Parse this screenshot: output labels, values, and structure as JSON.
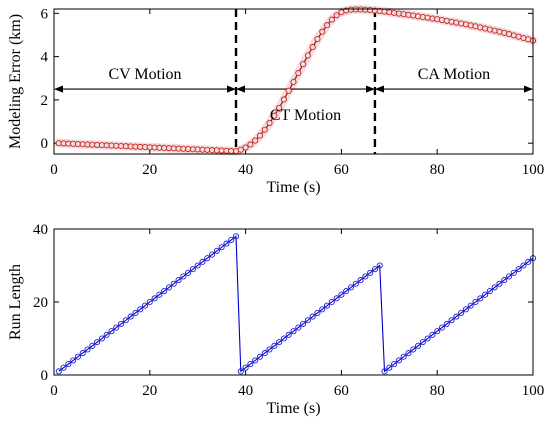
{
  "colors": {
    "axis": "#000000",
    "modeling_error_line": "#8b1a1a",
    "modeling_error_marker_fill": "#f3dede",
    "modeling_error_marker_edge": "#cc2222",
    "run_length_line": "#0000cc",
    "run_length_marker_edge": "#1f1fd0",
    "band": "#f2dede",
    "annotation": "#000000"
  },
  "chart_data": [
    {
      "type": "line",
      "title": "",
      "xlabel": "Time (s)",
      "ylabel": "Modeling Error (km)",
      "xlim": [
        0,
        100
      ],
      "ylim": [
        -0.5,
        6.2
      ],
      "xticks": [
        0,
        20,
        40,
        60,
        80,
        100
      ],
      "yticks": [
        0,
        2,
        4,
        6
      ],
      "grid": false,
      "marker": "circle",
      "series": [
        {
          "x": [
            1,
            2,
            3,
            4,
            5,
            6,
            7,
            8,
            9,
            10,
            11,
            12,
            13,
            14,
            15,
            16,
            17,
            18,
            19,
            20,
            21,
            22,
            23,
            24,
            25,
            26,
            27,
            28,
            29,
            30,
            31,
            32,
            33,
            34,
            35,
            36,
            37,
            38,
            39,
            40,
            41,
            42,
            43,
            44,
            45,
            46,
            47,
            48,
            49,
            50,
            51,
            52,
            53,
            54,
            55,
            56,
            57,
            58,
            59,
            60,
            61,
            62,
            63,
            64,
            65,
            66,
            67,
            68,
            69,
            70,
            71,
            72,
            73,
            74,
            75,
            76,
            77,
            78,
            79,
            80,
            81,
            82,
            83,
            84,
            85,
            86,
            87,
            88,
            89,
            90,
            91,
            92,
            93,
            94,
            95,
            96,
            97,
            98,
            99,
            100
          ],
          "y": [
            0.0,
            -0.01,
            -0.02,
            -0.03,
            -0.04,
            -0.05,
            -0.06,
            -0.07,
            -0.08,
            -0.09,
            -0.1,
            -0.11,
            -0.12,
            -0.13,
            -0.14,
            -0.15,
            -0.16,
            -0.17,
            -0.18,
            -0.19,
            -0.2,
            -0.21,
            -0.22,
            -0.23,
            -0.24,
            -0.25,
            -0.26,
            -0.27,
            -0.28,
            -0.29,
            -0.3,
            -0.31,
            -0.32,
            -0.33,
            -0.34,
            -0.35,
            -0.36,
            -0.37,
            -0.3,
            -0.2,
            -0.06,
            0.12,
            0.35,
            0.62,
            0.93,
            1.27,
            1.63,
            2.02,
            2.42,
            2.83,
            3.24,
            3.65,
            4.05,
            4.44,
            4.81,
            5.15,
            5.45,
            5.71,
            5.91,
            6.05,
            6.13,
            6.17,
            6.18,
            6.18,
            6.17,
            6.15,
            6.13,
            6.11,
            6.08,
            6.05,
            6.02,
            5.99,
            5.96,
            5.93,
            5.9,
            5.86,
            5.83,
            5.8,
            5.76,
            5.73,
            5.69,
            5.65,
            5.61,
            5.57,
            5.53,
            5.49,
            5.44,
            5.4,
            5.35,
            5.3,
            5.25,
            5.2,
            5.15,
            5.1,
            5.04,
            4.98,
            4.92,
            4.86,
            4.8,
            4.74
          ]
        }
      ],
      "vlines": [
        38,
        67
      ],
      "annotations": [
        {
          "text": "CV Motion",
          "x": 19,
          "y": 3.2,
          "span": [
            0,
            38
          ],
          "arrow_y": 2.5
        },
        {
          "text": "CT Motion",
          "x": 52.5,
          "y": 1.3,
          "span": [
            38,
            67
          ],
          "arrow_y": 2.5
        },
        {
          "text": "CA Motion",
          "x": 83.5,
          "y": 3.2,
          "span": [
            67,
            100
          ],
          "arrow_y": 2.5
        }
      ]
    },
    {
      "type": "line",
      "title": "",
      "xlabel": "Time (s)",
      "ylabel": "Run Length",
      "xlim": [
        0,
        100
      ],
      "ylim": [
        0,
        40
      ],
      "xticks": [
        0,
        20,
        40,
        60,
        80,
        100
      ],
      "yticks": [
        0,
        20,
        40
      ],
      "grid": false,
      "marker": "circle",
      "series": [
        {
          "x": [
            1,
            2,
            3,
            4,
            5,
            6,
            7,
            8,
            9,
            10,
            11,
            12,
            13,
            14,
            15,
            16,
            17,
            18,
            19,
            20,
            21,
            22,
            23,
            24,
            25,
            26,
            27,
            28,
            29,
            30,
            31,
            32,
            33,
            34,
            35,
            36,
            37,
            38,
            39,
            40,
            41,
            42,
            43,
            44,
            45,
            46,
            47,
            48,
            49,
            50,
            51,
            52,
            53,
            54,
            55,
            56,
            57,
            58,
            59,
            60,
            61,
            62,
            63,
            64,
            65,
            66,
            67,
            68,
            69,
            70,
            71,
            72,
            73,
            74,
            75,
            76,
            77,
            78,
            79,
            80,
            81,
            82,
            83,
            84,
            85,
            86,
            87,
            88,
            89,
            90,
            91,
            92,
            93,
            94,
            95,
            96,
            97,
            98,
            99,
            100
          ],
          "y": [
            1,
            2,
            3,
            4,
            5,
            6,
            7,
            8,
            9,
            10,
            11,
            12,
            13,
            14,
            15,
            16,
            17,
            18,
            19,
            20,
            21,
            22,
            23,
            24,
            25,
            26,
            27,
            28,
            29,
            30,
            31,
            32,
            33,
            34,
            35,
            36,
            37,
            38,
            1,
            2,
            3,
            4,
            5,
            6,
            7,
            8,
            9,
            10,
            11,
            12,
            13,
            14,
            15,
            16,
            17,
            18,
            19,
            20,
            21,
            22,
            23,
            24,
            25,
            26,
            27,
            28,
            29,
            30,
            1,
            2,
            3,
            4,
            5,
            6,
            7,
            8,
            9,
            10,
            11,
            12,
            13,
            14,
            15,
            16,
            17,
            18,
            19,
            20,
            21,
            22,
            23,
            24,
            25,
            26,
            27,
            28,
            29,
            30,
            31,
            32
          ]
        }
      ]
    }
  ]
}
